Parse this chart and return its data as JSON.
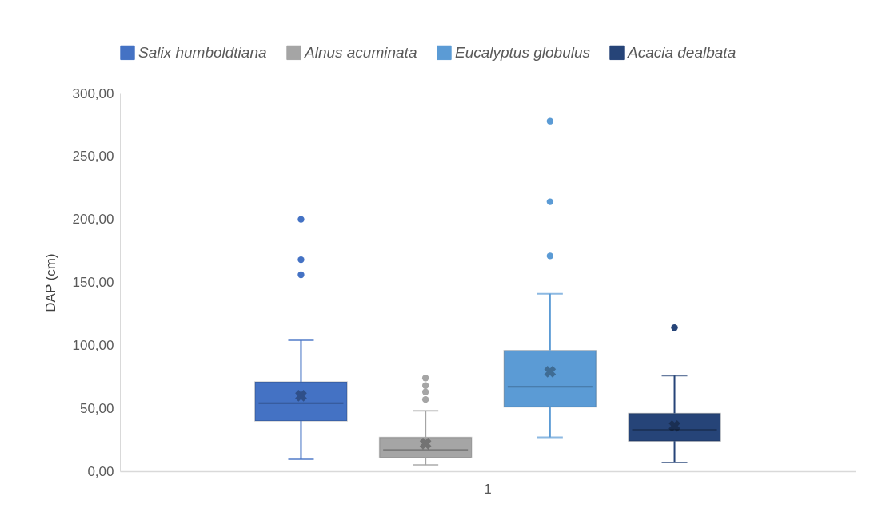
{
  "chart_data": {
    "type": "box",
    "categories": [
      "1"
    ],
    "ylabel": "DAP (cm)",
    "ylim": [
      0,
      300
    ],
    "yticks": [
      {
        "value": 0,
        "label": "0,00"
      },
      {
        "value": 50,
        "label": "50,00"
      },
      {
        "value": 100,
        "label": "100,00"
      },
      {
        "value": 150,
        "label": "150,00"
      },
      {
        "value": 200,
        "label": "200,00"
      },
      {
        "value": 250,
        "label": "250,00"
      },
      {
        "value": 300,
        "label": "300,00"
      }
    ],
    "legend": "top",
    "series": [
      {
        "name": "Salix humboldtiana",
        "color": "#4472c4",
        "boxes": [
          {
            "low": 9.5,
            "q1": 40,
            "median": 54,
            "q3": 71,
            "high": 104,
            "mean": 60,
            "outliers": [
              156,
              168,
              200
            ]
          }
        ]
      },
      {
        "name": "Alnus acuminata",
        "color": "#a5a5a5",
        "boxes": [
          {
            "low": 5,
            "q1": 11,
            "median": 17,
            "q3": 27,
            "high": 48,
            "mean": 22,
            "outliers": [
              57,
              63,
              68,
              74
            ]
          }
        ]
      },
      {
        "name": "Eucalyptus globulus",
        "color": "#5b9bd5",
        "boxes": [
          {
            "low": 27,
            "q1": 51,
            "median": 67,
            "q3": 96,
            "high": 141,
            "mean": 79,
            "outliers": [
              171,
              214,
              278
            ]
          }
        ]
      },
      {
        "name": "Acacia dealbata",
        "color": "#264478",
        "boxes": [
          {
            "low": 7,
            "q1": 24,
            "median": 33,
            "q3": 46,
            "high": 76,
            "mean": 36,
            "outliers": [
              114
            ]
          }
        ]
      }
    ]
  }
}
